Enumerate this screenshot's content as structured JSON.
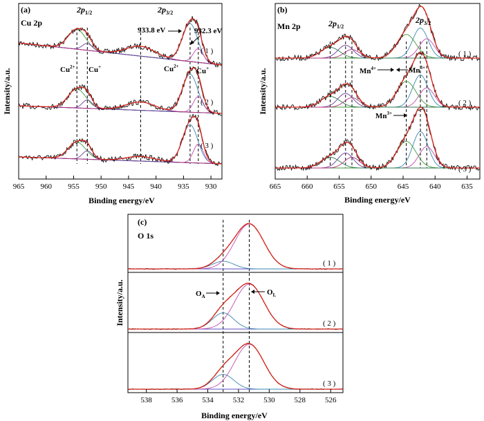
{
  "chart_data": [
    {
      "type": "line",
      "panel": "(a)",
      "element": "Cu 2p",
      "xlabel": "Binding energy/eV",
      "ylabel": "Intensity/a.u.",
      "xlim": [
        965,
        928
      ],
      "xticks": [
        965,
        960,
        955,
        950,
        945,
        940,
        935,
        930
      ],
      "peak_labels": {
        "p12_main": "2p",
        "p12_sub": "1/2",
        "p32_main": "2p",
        "p32_sub": "3/2",
        "e1": "933.8 eV",
        "e2": "932.3 eV",
        "cu2": "Cu",
        "cu2_sup": "2+",
        "cu1": "Cu",
        "cu1_sup": "+"
      },
      "samples": [
        "( 1 )",
        "( 2 )",
        "( 3 )"
      ],
      "reference_lines_eV": [
        954.4,
        952.5,
        942.8,
        933.8,
        932.3
      ],
      "components": [
        {
          "name": "Cu2+ 2p3/2",
          "center": 933.8,
          "width": 1.4
        },
        {
          "name": "Cu+ 2p3/2",
          "center": 932.3,
          "width": 0.9
        },
        {
          "name": "Cu2+ 2p1/2",
          "center": 954.4,
          "width": 1.6
        },
        {
          "name": "Cu+ 2p1/2",
          "center": 952.5,
          "width": 0.9
        },
        {
          "name": "satellite",
          "center": 942.8,
          "width": 2.6
        }
      ],
      "series": [
        {
          "amplitudes": [
            1.0,
            0.36,
            0.52,
            0.18,
            0.26
          ]
        },
        {
          "amplitudes": [
            1.0,
            0.42,
            0.5,
            0.22,
            0.22
          ]
        },
        {
          "amplitudes": [
            1.0,
            0.5,
            0.44,
            0.22,
            0.12
          ]
        }
      ]
    },
    {
      "type": "line",
      "panel": "(b)",
      "element": "Mn 2p",
      "xlabel": "Binding energy/eV",
      "ylabel": "Intensity/a.u.",
      "xlim": [
        665,
        633
      ],
      "xticks": [
        665,
        660,
        655,
        650,
        645,
        640,
        635
      ],
      "peak_labels": {
        "p12_main": "2p",
        "p12_sub": "1/2",
        "p32_main": "2p",
        "p32_sub": "3/2",
        "mn4": "Mn",
        "mn4_sup": "4+",
        "mn3": "Mn",
        "mn3_sup": "3+"
      },
      "samples": [
        "( 1 )",
        "( 2 )",
        "( 3 )"
      ],
      "reference_lines_eV": [
        656.4,
        654.0,
        653.0,
        644.5,
        642.3,
        641.3
      ],
      "components": [
        {
          "name": "Mn4+ 2p3/2",
          "center": 642.3,
          "width": 1.2
        },
        {
          "name": "Mn3+ 2p3/2",
          "center": 641.3,
          "width": 1.2
        },
        {
          "name": "Mn 2p3/2 shoulder",
          "center": 644.5,
          "width": 1.5
        },
        {
          "name": "Mn4+ 2p1/2",
          "center": 654.0,
          "width": 1.2
        },
        {
          "name": "Mn3+ 2p1/2",
          "center": 653.0,
          "width": 1.2
        },
        {
          "name": "Mn 2p1/2 shoulder",
          "center": 656.4,
          "width": 1.5
        }
      ],
      "series": [
        {
          "amplitudes": [
            0.7,
            0.45,
            0.55,
            0.3,
            0.2,
            0.25
          ]
        },
        {
          "amplitudes": [
            0.75,
            0.45,
            0.6,
            0.32,
            0.22,
            0.25
          ]
        },
        {
          "amplitudes": [
            0.85,
            0.5,
            0.62,
            0.35,
            0.25,
            0.25
          ]
        }
      ]
    },
    {
      "type": "line",
      "panel": "(c)",
      "element": "O 1s",
      "xlabel": "Binding energy/eV",
      "ylabel": "Intensity/a.u.",
      "xlim": [
        539.2,
        525.2
      ],
      "xticks": [
        538,
        536,
        534,
        532,
        530,
        528,
        526
      ],
      "peak_labels": {
        "oa": "O",
        "oa_sub": "A",
        "ol": "O",
        "ol_sub": "L"
      },
      "samples": [
        "( 1 )",
        "( 2 )",
        "( 3 )"
      ],
      "reference_lines_eV": [
        533.0,
        531.3
      ],
      "components": [
        {
          "name": "O_A",
          "center": 533.0,
          "width": 0.7
        },
        {
          "name": "O_L",
          "center": 531.3,
          "width": 0.95
        }
      ],
      "series": [
        {
          "amplitudes": [
            0.17,
            1.0
          ]
        },
        {
          "amplitudes": [
            0.36,
            1.0
          ]
        },
        {
          "amplitudes": [
            0.33,
            1.0
          ]
        }
      ]
    }
  ]
}
